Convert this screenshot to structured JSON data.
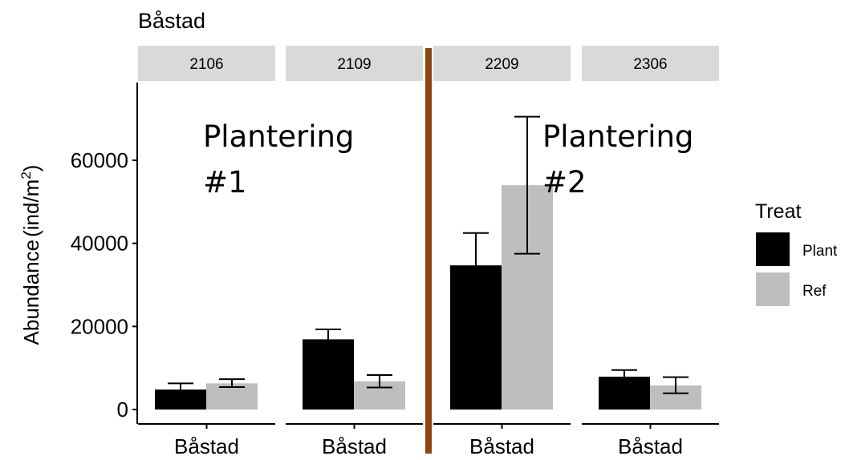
{
  "chart_data": {
    "type": "bar",
    "title": "Båstad",
    "ylabel": "Abundance (ind/m²)",
    "ylabel_parts": {
      "text": "Abundance",
      "open": "(",
      "unit": "ind/m",
      "sup": "2",
      "close": ")"
    },
    "xlabel": "",
    "ylim": [
      0,
      75000
    ],
    "yticks": [
      0,
      20000,
      40000,
      60000
    ],
    "panels": [
      {
        "label": "2106",
        "category": "Båstad",
        "bars": [
          {
            "series": "Plant",
            "value": 4800,
            "lower": 3300,
            "upper": 6300
          },
          {
            "series": "Ref",
            "value": 6300,
            "lower": 5400,
            "upper": 7300
          }
        ]
      },
      {
        "label": "2109",
        "category": "Båstad",
        "bars": [
          {
            "series": "Plant",
            "value": 16900,
            "lower": 14500,
            "upper": 19300
          },
          {
            "series": "Ref",
            "value": 6800,
            "lower": 5300,
            "upper": 8300
          }
        ]
      },
      {
        "label": "2209",
        "category": "Båstad",
        "bars": [
          {
            "series": "Plant",
            "value": 34700,
            "lower": 26500,
            "upper": 42500
          },
          {
            "series": "Ref",
            "value": 54000,
            "lower": 37500,
            "upper": 70500
          }
        ]
      },
      {
        "label": "2306",
        "category": "Båstad",
        "bars": [
          {
            "series": "Plant",
            "value": 7900,
            "lower": 6300,
            "upper": 9500
          },
          {
            "series": "Ref",
            "value": 5800,
            "lower": 3900,
            "upper": 7800
          }
        ]
      }
    ],
    "annotations": [
      {
        "lines": [
          "Plantering",
          "#1"
        ]
      },
      {
        "lines": [
          "Plantering",
          "#2"
        ]
      }
    ],
    "legend": {
      "title": "Treat",
      "position": "right",
      "entries": [
        {
          "name": "Plant",
          "color": "#000000"
        },
        {
          "name": "Ref",
          "color": "#bebebe"
        }
      ]
    },
    "colors": {
      "strip": "#d9d9d9",
      "divider": "#8b4513",
      "axis": "#000000",
      "tick_text": "#000000"
    },
    "grid": false
  }
}
